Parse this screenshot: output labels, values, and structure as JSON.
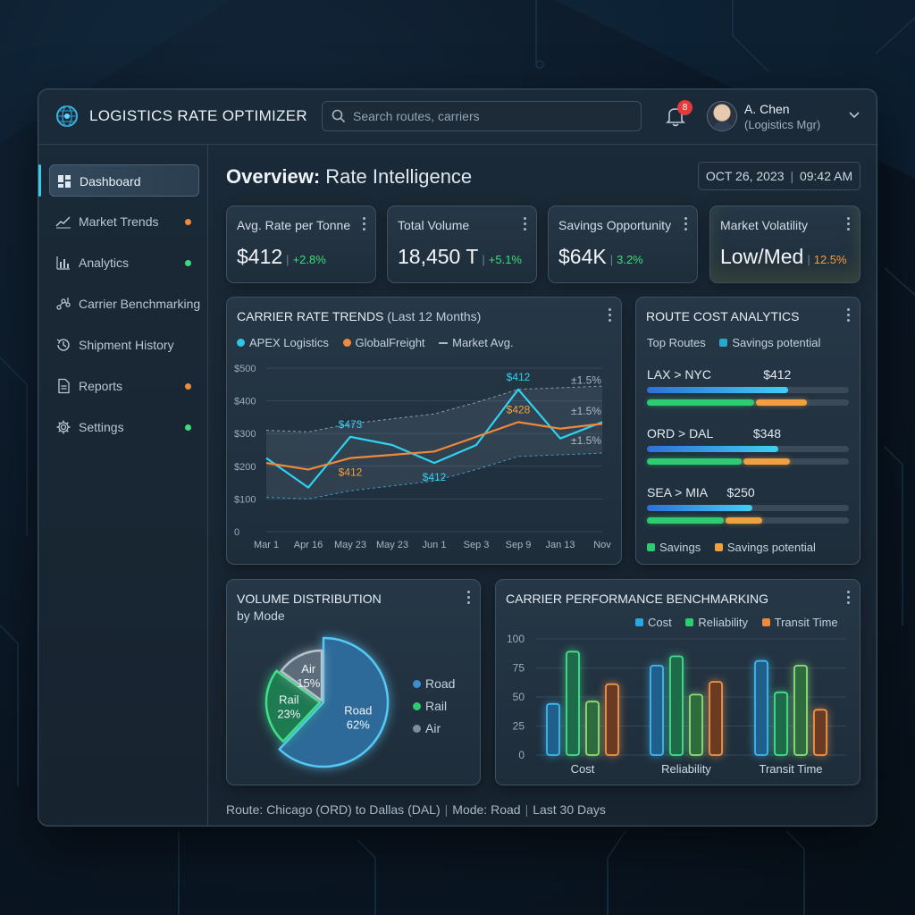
{
  "header": {
    "app_title": "LOGISTICS RATE OPTIMIZER",
    "search_placeholder": "Search routes, carriers",
    "notification_count": "8",
    "user_name": "A. Chen",
    "user_role": "(Logistics Mgr)"
  },
  "sidebar": {
    "items": [
      {
        "label": "Dashboard",
        "icon": "dashboard-icon",
        "active": true,
        "status": ""
      },
      {
        "label": "Market Trends",
        "icon": "trend-line-icon",
        "status": "#f08a3c"
      },
      {
        "label": "Analytics",
        "icon": "bar-chart-icon",
        "status": "#3ddc7a"
      },
      {
        "label": "Carrier Benchmarking",
        "icon": "benchmark-icon",
        "status": ""
      },
      {
        "label": "Shipment History",
        "icon": "history-icon",
        "status": ""
      },
      {
        "label": "Reports",
        "icon": "document-icon",
        "status": "#f08a3c"
      },
      {
        "label": "Settings",
        "icon": "gear-icon",
        "status": "#3ddc7a"
      }
    ]
  },
  "main": {
    "title_bold": "Overview:",
    "title_rest": " Rate Intelligence",
    "date": "OCT 26, 2023",
    "time": "09:42 AM"
  },
  "kpis": [
    {
      "label": "Avg. Rate per Tonne",
      "value": "$412",
      "delta": "+2.8%",
      "delta_color": "#3ddc7a"
    },
    {
      "label": "Total Volume",
      "value": "18,450 T",
      "delta": "+5.1%",
      "delta_color": "#3ddc7a"
    },
    {
      "label": "Savings Opportunity",
      "value": "$64K",
      "delta": "3.2%",
      "delta_color": "#3ddc7a"
    },
    {
      "label": "Market Volatility",
      "value": "Low/Med",
      "delta": "12.5%",
      "delta_color": "#f0a03c"
    }
  ],
  "trends": {
    "title": "CARRIER RATE TRENDS",
    "title_suffix": "(Last 12 Months)",
    "legend": [
      "APEX Logistics",
      "GlobalFreight",
      "Market Avg."
    ],
    "annotations": [
      "$473",
      "$412",
      "$412",
      "$412",
      "$428",
      "±1.5%",
      "±1.5%",
      "±1.5%"
    ]
  },
  "route": {
    "title": "ROUTE COST ANALYTICS",
    "legend_top": [
      "Top Routes",
      "Savings potential"
    ],
    "routes": [
      {
        "name": "LAX > NYC",
        "cost": "$412",
        "blue": 0.7,
        "green": 0.53,
        "orange": 0.25
      },
      {
        "name": "ORD > DAL",
        "cost": "$348",
        "blue": 0.65,
        "green": 0.47,
        "orange": 0.23
      },
      {
        "name": "SEA > MIA",
        "cost": "$250",
        "blue": 0.52,
        "green": 0.38,
        "orange": 0.18
      }
    ],
    "legend_bottom": [
      "Savings",
      "Savings potential"
    ]
  },
  "volume": {
    "title": "VOLUME DISTRIBUTION",
    "subtitle": "by Mode",
    "slices": [
      {
        "label": "Road",
        "pct": "62%",
        "value": 62,
        "color": "#2f6f9e"
      },
      {
        "label": "Rail",
        "pct": "23%",
        "value": 23,
        "color": "#1f7a4f"
      },
      {
        "label": "Air",
        "pct": "15%",
        "value": 15,
        "color": "#566675"
      }
    ],
    "legend": [
      "Road",
      "Rail",
      "Air"
    ]
  },
  "benchmark": {
    "title": "CARRIER PERFORMANCE BENCHMARKING",
    "legend": [
      "Cost",
      "Reliability",
      "Transit Time"
    ]
  },
  "footer": {
    "route": "Route: Chicago (ORD) to Dallas (DAL)",
    "mode": "Mode: Road",
    "period": "Last 30 Days"
  },
  "chart_data": [
    {
      "type": "line",
      "x": [
        "Mar 1",
        "Apr 16",
        "May 23",
        "May 23",
        "Jun 1",
        "Sep 3",
        "Sep 9",
        "Jan 13",
        "Nov"
      ],
      "series": [
        {
          "name": "APEX Logistics",
          "values": [
            225,
            135,
            290,
            265,
            210,
            265,
            435,
            285,
            335
          ]
        },
        {
          "name": "GlobalFreight",
          "values": [
            210,
            190,
            225,
            235,
            245,
            290,
            335,
            315,
            330
          ]
        },
        {
          "name": "Market Avg.",
          "values": [
            290,
            285,
            310,
            325,
            340,
            375,
            415,
            420,
            425
          ]
        }
      ],
      "ylim": [
        0,
        500
      ],
      "yticks": [
        "$500",
        "$400",
        "$300",
        "$200",
        "$100",
        "0"
      ],
      "grid": true
    },
    {
      "type": "pie",
      "categories": [
        "Road",
        "Rail",
        "Air"
      ],
      "values": [
        62,
        23,
        15
      ]
    },
    {
      "type": "bar",
      "categories": [
        "Cost",
        "Reliability",
        "Transit Time"
      ],
      "series": [
        {
          "name": "Cost",
          "values": [
            44,
            77,
            81
          ]
        },
        {
          "name": "Reliability",
          "values": [
            89,
            85,
            54
          ]
        },
        {
          "name": "",
          "values": [
            46,
            52,
            77
          ]
        },
        {
          "name": "Transit Time",
          "values": [
            61,
            63,
            39
          ]
        }
      ],
      "ylim": [
        0,
        100
      ],
      "yticks": [
        "100",
        "75",
        "50",
        "25",
        "0"
      ],
      "grid": true
    }
  ]
}
